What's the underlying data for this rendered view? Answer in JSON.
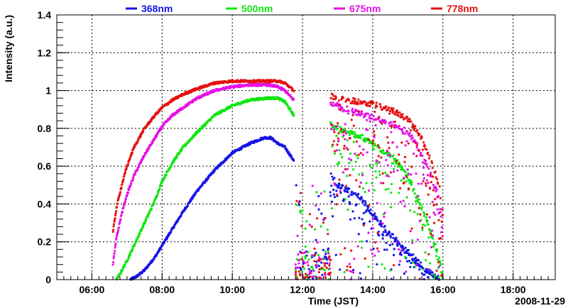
{
  "chart_data": {
    "type": "scatter",
    "title": "",
    "xlabel": "Time (JST)",
    "ylabel": "Intensity (a.u.)",
    "date_label": "2008-11-29",
    "x_unit": "hours",
    "xlim": [
      5.0,
      19.2
    ],
    "ylim": [
      0,
      1.4
    ],
    "x_ticks": [
      {
        "value": 6,
        "label": "06:00"
      },
      {
        "value": 8,
        "label": "08:00"
      },
      {
        "value": 10,
        "label": "10:00"
      },
      {
        "value": 12,
        "label": "12:00"
      },
      {
        "value": 14,
        "label": "14:00"
      },
      {
        "value": 16,
        "label": "16:00"
      },
      {
        "value": 18,
        "label": "18:00"
      }
    ],
    "y_ticks": [
      {
        "value": 0,
        "label": "0"
      },
      {
        "value": 0.2,
        "label": "0.2"
      },
      {
        "value": 0.4,
        "label": "0.4"
      },
      {
        "value": 0.6,
        "label": "0.6"
      },
      {
        "value": 0.8,
        "label": "0.8"
      },
      {
        "value": 1.0,
        "label": "1"
      },
      {
        "value": 1.2,
        "label": "1.2"
      },
      {
        "value": 1.4,
        "label": "1.4"
      }
    ],
    "grid": true,
    "legend_position": "top",
    "series": [
      {
        "name": "368nm",
        "color": "#1515e6",
        "x": [
          7.1,
          7.3,
          7.5,
          7.8,
          8.0,
          8.3,
          8.6,
          9.0,
          9.5,
          10.0,
          10.5,
          10.9,
          11.1,
          11.3,
          11.5,
          11.75
        ],
        "values": [
          0.0,
          0.02,
          0.05,
          0.12,
          0.18,
          0.27,
          0.36,
          0.47,
          0.58,
          0.67,
          0.72,
          0.75,
          0.75,
          0.72,
          0.7,
          0.63
        ],
        "afternoon_x": [
          12.8,
          13.0,
          13.3,
          13.6,
          14.0,
          14.3,
          14.6,
          15.0,
          15.3,
          15.6,
          15.9
        ],
        "afternoon_values": [
          0.55,
          0.5,
          0.47,
          0.45,
          0.35,
          0.28,
          0.22,
          0.15,
          0.09,
          0.04,
          0.0
        ]
      },
      {
        "name": "500nm",
        "color": "#10e610",
        "x": [
          6.7,
          6.8,
          7.0,
          7.2,
          7.5,
          7.8,
          8.0,
          8.3,
          8.6,
          9.0,
          9.5,
          10.0,
          10.5,
          11.0,
          11.3,
          11.5,
          11.75
        ],
        "values": [
          0.0,
          0.03,
          0.1,
          0.18,
          0.3,
          0.42,
          0.52,
          0.62,
          0.7,
          0.78,
          0.87,
          0.92,
          0.95,
          0.96,
          0.96,
          0.94,
          0.87
        ],
        "afternoon_x": [
          12.8,
          13.0,
          13.3,
          13.6,
          14.0,
          14.3,
          14.6,
          15.0,
          15.3,
          15.6,
          15.9,
          16.0
        ],
        "afternoon_values": [
          0.82,
          0.8,
          0.78,
          0.76,
          0.72,
          0.68,
          0.64,
          0.55,
          0.42,
          0.28,
          0.12,
          0.0
        ]
      },
      {
        "name": "675nm",
        "color": "#e610e6",
        "x": [
          6.6,
          6.7,
          6.85,
          7.0,
          7.2,
          7.5,
          7.8,
          8.0,
          8.3,
          8.6,
          9.0,
          9.5,
          10.0,
          10.5,
          11.0,
          11.3,
          11.5,
          11.75
        ],
        "values": [
          0.08,
          0.22,
          0.35,
          0.45,
          0.55,
          0.66,
          0.75,
          0.81,
          0.87,
          0.91,
          0.96,
          1.0,
          1.02,
          1.03,
          1.03,
          1.02,
          1.0,
          0.95
        ],
        "afternoon_x": [
          12.8,
          13.0,
          13.3,
          13.6,
          14.0,
          14.3,
          14.6,
          15.0,
          15.3,
          15.6,
          15.9,
          16.0
        ],
        "afternoon_values": [
          0.93,
          0.92,
          0.9,
          0.88,
          0.86,
          0.84,
          0.82,
          0.78,
          0.7,
          0.58,
          0.42,
          0.22
        ]
      },
      {
        "name": "778nm",
        "color": "#e61010",
        "x": [
          6.6,
          6.7,
          6.85,
          7.0,
          7.2,
          7.5,
          7.8,
          8.0,
          8.3,
          8.6,
          9.0,
          9.5,
          10.0,
          10.5,
          11.0,
          11.3,
          11.5,
          11.75
        ],
        "values": [
          0.25,
          0.38,
          0.5,
          0.6,
          0.7,
          0.8,
          0.87,
          0.91,
          0.95,
          0.98,
          1.01,
          1.04,
          1.05,
          1.05,
          1.05,
          1.05,
          1.04,
          1.0
        ],
        "afternoon_x": [
          12.8,
          13.0,
          13.3,
          13.6,
          14.0,
          14.3,
          14.6,
          15.0,
          15.3,
          15.6,
          15.9,
          16.0
        ],
        "afternoon_values": [
          0.97,
          0.96,
          0.95,
          0.94,
          0.93,
          0.91,
          0.89,
          0.85,
          0.78,
          0.66,
          0.5,
          0.33
        ]
      }
    ]
  }
}
